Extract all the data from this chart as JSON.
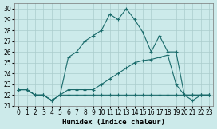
{
  "xlabel": "Humidex (Indice chaleur)",
  "background_color": "#cceaea",
  "grid_color": "#aacccc",
  "line_color": "#1a6b6b",
  "xlim_min": -0.5,
  "xlim_max": 23.5,
  "ylim_min": 21,
  "ylim_max": 30.5,
  "yticks": [
    21,
    22,
    23,
    24,
    25,
    26,
    27,
    28,
    29,
    30
  ],
  "xticks": [
    0,
    1,
    2,
    3,
    4,
    5,
    6,
    7,
    8,
    9,
    10,
    11,
    12,
    13,
    14,
    15,
    16,
    17,
    18,
    19,
    20,
    21,
    22,
    23
  ],
  "line1_x": [
    0,
    1,
    2,
    3,
    4,
    5,
    6,
    7,
    8,
    9,
    10,
    11,
    12,
    13,
    14,
    15,
    16,
    17,
    18,
    19,
    20,
    21,
    22,
    23
  ],
  "line1_y": [
    22.5,
    22.5,
    22.0,
    22.0,
    21.5,
    22.0,
    22.0,
    22.0,
    22.0,
    22.0,
    22.0,
    22.0,
    22.0,
    22.0,
    22.0,
    22.0,
    22.0,
    22.0,
    22.0,
    22.0,
    22.0,
    22.0,
    22.0,
    22.0
  ],
  "line2_x": [
    0,
    1,
    2,
    3,
    4,
    5,
    6,
    7,
    8,
    9,
    10,
    11,
    12,
    13,
    14,
    15,
    16,
    17,
    18,
    19,
    20,
    21,
    22,
    23
  ],
  "line2_y": [
    22.5,
    22.5,
    22.0,
    22.0,
    21.5,
    22.0,
    22.5,
    22.5,
    22.5,
    22.5,
    23.0,
    23.5,
    24.0,
    24.5,
    25.0,
    25.2,
    25.3,
    25.5,
    25.7,
    23.0,
    22.0,
    22.0,
    22.0,
    22.0
  ],
  "line3_x": [
    0,
    1,
    2,
    3,
    4,
    5,
    6,
    7,
    8,
    9,
    10,
    11,
    12,
    13,
    14,
    15,
    16,
    17,
    18,
    19,
    20,
    21,
    22,
    23
  ],
  "line3_y": [
    22.5,
    22.5,
    22.0,
    22.0,
    21.5,
    22.0,
    25.5,
    26.0,
    27.0,
    27.5,
    28.0,
    29.5,
    29.0,
    30.0,
    29.0,
    27.8,
    26.0,
    27.5,
    26.0,
    26.0,
    22.0,
    21.5,
    22.0,
    22.0
  ]
}
